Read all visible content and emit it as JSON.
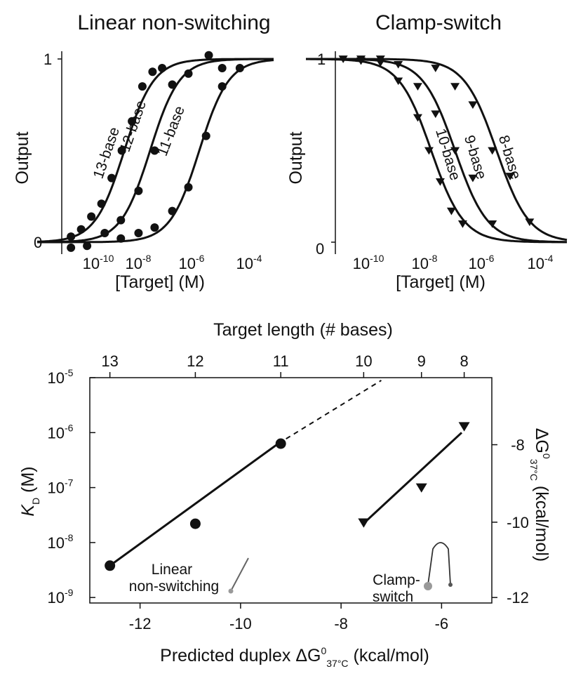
{
  "chart_data": [
    {
      "type": "line",
      "panel": "top-left",
      "title": "Linear non-switching",
      "xlabel": "[Target] (M)",
      "ylabel": "Output",
      "xscale": "log",
      "xlim": [
        1e-11,
        0.0001
      ],
      "ylim": [
        0,
        1
      ],
      "x_tick_labels": [
        "10-10",
        "10-8",
        "10-6",
        "10-4"
      ],
      "y_tick_labels": [
        "0",
        "1"
      ],
      "marker": "circle",
      "series": [
        {
          "name": "13-base",
          "kd": 3.8e-09,
          "x": [
            1e-10,
            2e-10,
            4e-10,
            8e-10,
            1.6e-09,
            3.2e-09,
            6.4e-09,
            1.3e-08,
            2.6e-08,
            5e-08
          ],
          "y": [
            0.03,
            0.07,
            0.14,
            0.21,
            0.35,
            0.5,
            0.66,
            0.85,
            0.93,
            0.95
          ]
        },
        {
          "name": "12-base",
          "kd": 2.2e-08,
          "x": [
            3e-10,
            1e-09,
            3e-09,
            1e-08,
            3e-08,
            1e-07,
            3e-07,
            1.2e-06,
            3e-06
          ],
          "y": [
            -0.02,
            0.05,
            0.12,
            0.28,
            0.5,
            0.86,
            0.92,
            1.02,
            0.95
          ]
        },
        {
          "name": "11-base",
          "kd": 6.3e-07,
          "x": [
            1e-10,
            3e-09,
            1e-08,
            3e-08,
            1e-07,
            3e-07,
            1e-06,
            3e-06,
            1e-05
          ],
          "y": [
            -0.03,
            0.02,
            0.05,
            0.08,
            0.17,
            0.3,
            0.58,
            0.85,
            0.95
          ]
        }
      ]
    },
    {
      "type": "line",
      "panel": "top-right",
      "title": "Clamp-switch",
      "xlabel": "[Target] (M)",
      "ylabel": "Output",
      "xscale": "log",
      "xlim": [
        1e-11,
        0.0001
      ],
      "ylim": [
        0,
        1
      ],
      "x_tick_labels": [
        "10-10",
        "10-8",
        "10-6",
        "10-4"
      ],
      "y_tick_labels": [
        "0",
        "1"
      ],
      "marker": "triangle-down",
      "series": [
        {
          "name": "10-base",
          "kd": 2.3e-08,
          "x": [
            1e-10,
            3e-10,
            1e-09,
            3e-09,
            1e-08,
            2e-08,
            4e-08,
            8e-08,
            1.6e-07
          ],
          "y": [
            1.0,
            1.0,
            0.98,
            0.88,
            0.68,
            0.5,
            0.33,
            0.17,
            0.1
          ]
        },
        {
          "name": "9-base",
          "kd": 1e-07,
          "x": [
            3e-10,
            3e-09,
            1e-08,
            3e-08,
            1e-07,
            3e-07,
            1e-06
          ],
          "y": [
            0.99,
            0.97,
            0.85,
            0.7,
            0.5,
            0.35,
            0.1
          ]
        },
        {
          "name": "8-base",
          "kd": 1.3e-06,
          "x": [
            1e-09,
            3e-08,
            1e-07,
            3e-07,
            1e-06,
            3e-06,
            1e-05
          ],
          "y": [
            1.0,
            0.95,
            0.85,
            0.75,
            0.5,
            0.36,
            0.11
          ]
        }
      ]
    },
    {
      "type": "scatter",
      "panel": "bottom",
      "xlabel": "Predicted duplex ΔG⁰₃₇°C (kcal/mol)",
      "ylabel": "KD (M)",
      "x2label": "Target length (# bases)",
      "y2label": "ΔG⁰₃₇°C (kcal/mol)",
      "xlim": [
        -13,
        -5
      ],
      "ylim_log10": [
        -9.1,
        -5
      ],
      "x_tick_labels": [
        "-12",
        "-10",
        "-8",
        "-6"
      ],
      "y_tick_labels": [
        "10-9",
        "10-8",
        "10-7",
        "10-6",
        "10-5"
      ],
      "top_tick_labels": [
        "13",
        "12",
        "11",
        "10",
        "9",
        "8"
      ],
      "top_tick_dg": [
        -12.6,
        -10.9,
        -9.2,
        -7.55,
        -6.4,
        -5.55
      ],
      "right_tick_labels": [
        "-8",
        "-10",
        "-12"
      ],
      "right_tick_log10kd": [
        -6.22,
        -7.63,
        -9.0
      ],
      "series": [
        {
          "name": "Linear non-switching",
          "marker": "circle",
          "x": [
            -12.6,
            -10.9,
            -9.2
          ],
          "y": [
            3.8e-09,
            2.2e-08,
            6.3e-07
          ],
          "fit_log10": [
            [
              -12.6,
              -8.42
            ],
            [
              -9.25,
              -6.2
            ]
          ],
          "dashed_log10": [
            [
              -9.25,
              -6.2
            ],
            [
              -7.2,
              -5.05
            ]
          ]
        },
        {
          "name": "Clamp-switch",
          "marker": "triangle-down",
          "x": [
            -7.55,
            -6.4,
            -5.55
          ],
          "y": [
            2.3e-08,
            1e-07,
            1.3e-06
          ],
          "fit_log10": [
            [
              -7.55,
              -7.65
            ],
            [
              -5.6,
              -6.0
            ]
          ]
        }
      ],
      "annotations": [
        "Linear",
        "non-switching",
        "Clamp-",
        "switch"
      ]
    }
  ]
}
